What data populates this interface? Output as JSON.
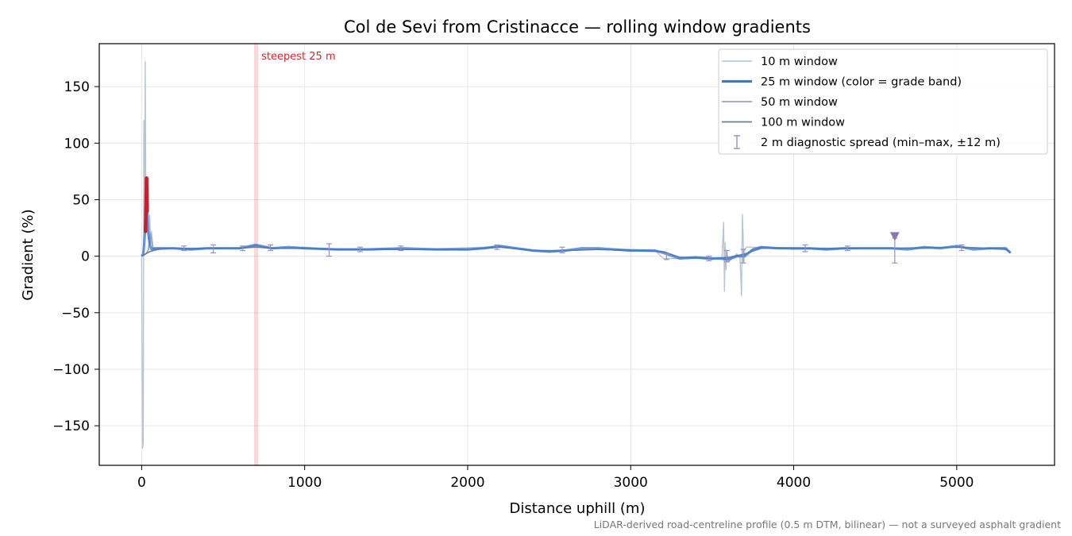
{
  "chart_data": {
    "type": "line",
    "title": "Col de Sevi from Cristinacce — rolling window gradients",
    "xlabel": "Distance uphill (m)",
    "ylabel": "Gradient (%)",
    "xlim": [
      -260,
      5600
    ],
    "ylim": [
      -185,
      188
    ],
    "xticks": [
      0,
      1000,
      2000,
      3000,
      4000,
      5000
    ],
    "xtick_labels": [
      "0",
      "1000",
      "2000",
      "3000",
      "4000",
      "5000"
    ],
    "yticks": [
      150,
      100,
      50,
      0,
      -50,
      -100,
      -150
    ],
    "ytick_labels": [
      "150",
      "100",
      "50",
      "0",
      "−50",
      "−100",
      "−150"
    ],
    "grid": true,
    "legend_position": "top-right",
    "legend": [
      {
        "label": "10 m window",
        "color": "#b4c2cf",
        "style": "thin-line"
      },
      {
        "label": "25 m window (color = grade band)",
        "color": "#3a78d6",
        "style": "thick-line"
      },
      {
        "label": "50 m window",
        "color": "#97a5b5",
        "style": "line"
      },
      {
        "label": "100 m window",
        "color": "#6e7c8d",
        "style": "line"
      },
      {
        "label": "2 m diagnostic spread (min–max, ±12 m)",
        "color": "#9a8fc0",
        "style": "errorbar"
      }
    ],
    "highlight": {
      "label": "steepest 25 m",
      "x_start": 690,
      "x_end": 715,
      "color": "#d62728"
    },
    "footnote": "LiDAR-derived road-centreline profile (0.5 m DTM, bilinear) — not a surveyed asphalt gradient",
    "series": [
      {
        "name": "10 m window",
        "color": "#b4c2cf",
        "x": [
          0,
          6,
          10,
          14,
          18,
          22,
          26,
          30,
          34,
          38,
          42,
          46,
          50,
          55,
          60,
          70,
          80,
          100,
          150,
          200,
          300,
          400,
          500,
          600,
          700,
          800,
          1000,
          1150,
          1300,
          1500,
          1700,
          1900,
          2100,
          2200,
          2400,
          2500,
          2600,
          2800,
          3000,
          3150,
          3200,
          3300,
          3400,
          3500,
          3560,
          3570,
          3575,
          3580,
          3585,
          3590,
          3600,
          3650,
          3670,
          3680,
          3685,
          3690,
          3695,
          3700,
          3710,
          3750,
          3800,
          3900,
          4000,
          4200,
          4400,
          4600,
          4800,
          5000,
          5200,
          5300,
          5330
        ],
        "y": [
          0,
          -170,
          -165,
          120,
          30,
          172,
          40,
          60,
          30,
          20,
          15,
          12,
          36,
          10,
          22,
          8,
          7,
          6,
          7,
          7,
          6,
          7,
          7,
          7,
          10,
          7,
          8,
          6,
          6,
          7,
          6,
          7,
          8,
          9,
          5,
          4,
          5,
          6,
          6,
          5,
          -2,
          -2,
          -2,
          -3,
          -1,
          30,
          -31,
          12,
          -12,
          4,
          -5,
          2,
          0,
          -35,
          37,
          15,
          -5,
          6,
          8,
          8,
          7,
          7,
          6,
          7,
          7,
          7,
          7,
          8,
          7,
          7,
          3
        ]
      },
      {
        "name": "25 m window",
        "color": "#3a78d6",
        "x": [
          0,
          10,
          15,
          20,
          24,
          28,
          32,
          36,
          40,
          50,
          60,
          80,
          100,
          150,
          200,
          300,
          400,
          500,
          600,
          700,
          800,
          900,
          1000,
          1200,
          1400,
          1600,
          1800,
          2000,
          2100,
          2200,
          2300,
          2400,
          2500,
          2600,
          2700,
          2800,
          2900,
          3000,
          3100,
          3150,
          3200,
          3300,
          3400,
          3500,
          3550,
          3600,
          3650,
          3700,
          3750,
          3800,
          3900,
          4000,
          4100,
          4200,
          4300,
          4400,
          4500,
          4600,
          4700,
          4800,
          4900,
          5000,
          5100,
          5200,
          5300,
          5330
        ],
        "y": [
          0,
          2,
          10,
          20,
          30,
          69,
          65,
          40,
          22,
          10,
          6,
          7,
          7,
          7,
          7,
          6,
          7,
          7,
          7,
          10,
          7,
          8,
          7,
          6,
          6,
          7,
          6,
          6,
          7,
          9,
          7,
          5,
          4,
          5,
          7,
          7,
          6,
          5,
          5,
          5,
          3,
          -2,
          -1,
          -2,
          -2,
          -3,
          0,
          0,
          6,
          8,
          7,
          7,
          7,
          6,
          7,
          7,
          7,
          7,
          6,
          8,
          7,
          9,
          6,
          7,
          7,
          3
        ]
      },
      {
        "name": "50 m window",
        "color": "#97a5b5",
        "x": [
          0,
          25,
          40,
          55,
          70,
          100,
          200,
          300,
          400,
          500,
          600,
          700,
          800,
          1000,
          1200,
          1400,
          1600,
          1800,
          2000,
          2200,
          2400,
          2500,
          2600,
          2800,
          3000,
          3100,
          3200,
          3300,
          3400,
          3500,
          3600,
          3700,
          3750,
          3800,
          4000,
          4200,
          4400,
          4600,
          4800,
          5000,
          5200,
          5300,
          5330
        ],
        "y": [
          0,
          2,
          5,
          20,
          6,
          7,
          7,
          6,
          7,
          7,
          7,
          9,
          7,
          7,
          6,
          6,
          6,
          6,
          6,
          8,
          5,
          4,
          5,
          6,
          5,
          5,
          4,
          -1,
          -1,
          -2,
          -2,
          1,
          6,
          8,
          7,
          6,
          7,
          7,
          7,
          8,
          7,
          7,
          3
        ]
      },
      {
        "name": "100 m window",
        "color": "#6e7c8d",
        "x": [
          0,
          50,
          100,
          200,
          400,
          600,
          700,
          800,
          1000,
          1200,
          1500,
          2000,
          2200,
          2400,
          2600,
          2800,
          3000,
          3200,
          3300,
          3500,
          3600,
          3700,
          3800,
          4000,
          4300,
          4600,
          5000,
          5300,
          5330
        ],
        "y": [
          0,
          4,
          6,
          7,
          7,
          7,
          8,
          7,
          7,
          6,
          6,
          6,
          8,
          5,
          5,
          6,
          5,
          4,
          -1,
          -2,
          -1,
          2,
          7,
          7,
          7,
          7,
          8,
          6,
          3
        ]
      }
    ],
    "errorbars": {
      "name": "2 m diagnostic spread (min–max, ±12 m)",
      "color": "#9a8fc0",
      "x": [
        260,
        440,
        620,
        790,
        1150,
        1340,
        1590,
        2180,
        2580,
        3220,
        3480,
        3590,
        3690,
        4070,
        4330,
        4620,
        5030
      ],
      "low": [
        5,
        3,
        5,
        5,
        0,
        4,
        5,
        6,
        3,
        -3,
        -4,
        -5,
        -6,
        4,
        5,
        -6,
        5
      ],
      "high": [
        9,
        10,
        9,
        10,
        11,
        8,
        9,
        10,
        8,
        2,
        0,
        5,
        6,
        10,
        9,
        16,
        10
      ],
      "marker": {
        "x": 4620,
        "y": 17,
        "shape": "triangle-down"
      }
    }
  }
}
